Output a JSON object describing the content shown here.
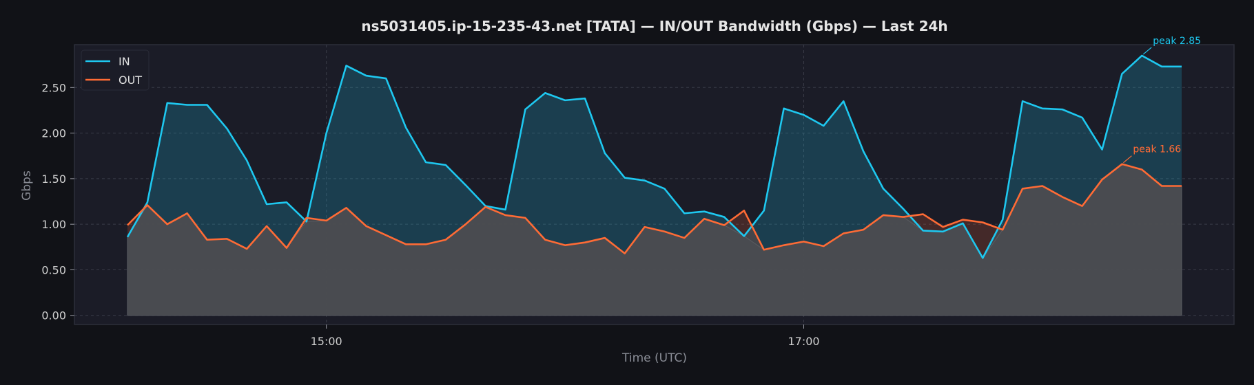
{
  "chart_data": {
    "type": "line",
    "title": "ns5031405.ip-15-235-43.net [TATA] — IN/OUT Bandwidth (Gbps) — Last 24h",
    "xlabel": "Time (UTC)",
    "ylabel": "Gbps",
    "x": [
      "14:10",
      "14:15",
      "14:20",
      "14:25",
      "14:30",
      "14:35",
      "14:40",
      "14:45",
      "14:50",
      "14:55",
      "15:00",
      "15:05",
      "15:10",
      "15:15",
      "15:20",
      "15:25",
      "15:30",
      "15:35",
      "15:40",
      "15:45",
      "15:50",
      "15:55",
      "16:00",
      "16:05",
      "16:10",
      "16:15",
      "16:20",
      "16:25",
      "16:30",
      "16:35",
      "16:40",
      "16:45",
      "16:50",
      "16:55",
      "17:00",
      "17:05",
      "17:10",
      "17:15",
      "17:20",
      "17:25",
      "17:30",
      "17:35",
      "17:40",
      "17:45",
      "17:50",
      "17:55",
      "18:00",
      "18:05",
      "18:10",
      "18:15",
      "18:20",
      "18:25",
      "18:30",
      "18:35"
    ],
    "x_ticks": [
      "15:00",
      "17:00"
    ],
    "y_ticks": [
      "0.00",
      "0.50",
      "1.00",
      "1.50",
      "2.00",
      "2.50"
    ],
    "ylim": [
      -0.1,
      2.97
    ],
    "grid": true,
    "legend_position": "top-left",
    "series": [
      {
        "name": "IN",
        "color": "#1ec8f0",
        "values": [
          0.86,
          1.24,
          2.33,
          2.31,
          2.31,
          2.05,
          1.7,
          1.22,
          1.24,
          1.03,
          2.0,
          2.74,
          2.63,
          2.6,
          2.06,
          1.68,
          1.65,
          1.43,
          1.2,
          1.16,
          2.26,
          2.44,
          2.36,
          2.38,
          1.78,
          1.51,
          1.48,
          1.39,
          1.12,
          1.14,
          1.08,
          0.87,
          1.15,
          2.27,
          2.2,
          2.08,
          2.35,
          1.8,
          1.39,
          1.17,
          0.93,
          0.92,
          1.01,
          0.63,
          1.05,
          2.35,
          2.27,
          2.26,
          2.17,
          1.82,
          2.65,
          2.85,
          2.73,
          2.73
        ]
      },
      {
        "name": "OUT",
        "color": "#ff6b35",
        "values": [
          0.99,
          1.21,
          1.0,
          1.12,
          0.83,
          0.84,
          0.73,
          0.98,
          0.74,
          1.07,
          1.04,
          1.18,
          0.98,
          0.88,
          0.78,
          0.78,
          0.83,
          1.0,
          1.19,
          1.1,
          1.07,
          0.83,
          0.77,
          0.8,
          0.85,
          0.68,
          0.97,
          0.92,
          0.85,
          1.06,
          0.99,
          1.15,
          0.72,
          0.77,
          0.81,
          0.76,
          0.9,
          0.94,
          1.1,
          1.08,
          1.11,
          0.97,
          1.05,
          1.02,
          0.94,
          1.39,
          1.42,
          1.3,
          1.2,
          1.49,
          1.66,
          1.6,
          1.42,
          1.42
        ]
      }
    ],
    "annotations": [
      {
        "text": "peak 2.85",
        "series": "IN",
        "color": "#1ec8f0"
      },
      {
        "text": "peak 1.66",
        "series": "OUT",
        "color": "#ff6b35"
      }
    ]
  }
}
